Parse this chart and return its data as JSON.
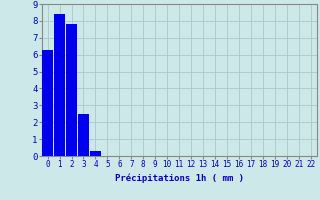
{
  "categories": [
    0,
    1,
    2,
    3,
    4,
    5,
    6,
    7,
    8,
    9,
    10,
    11,
    12,
    13,
    14,
    15,
    16,
    17,
    18,
    19,
    20,
    21,
    22
  ],
  "values": [
    6.3,
    8.4,
    7.8,
    2.5,
    0.3,
    0,
    0,
    0,
    0,
    0,
    0,
    0,
    0,
    0,
    0,
    0,
    0,
    0,
    0,
    0,
    0,
    0,
    0
  ],
  "bar_color": "#0000ee",
  "background_color": "#cce8e8",
  "grid_color": "#aac8c8",
  "xlabel": "Précipitations 1h ( mm )",
  "ylim": [
    0,
    9
  ],
  "xlim": [
    -0.5,
    22.5
  ],
  "yticks": [
    0,
    1,
    2,
    3,
    4,
    5,
    6,
    7,
    8,
    9
  ],
  "xticks": [
    0,
    1,
    2,
    3,
    4,
    5,
    6,
    7,
    8,
    9,
    10,
    11,
    12,
    13,
    14,
    15,
    16,
    17,
    18,
    19,
    20,
    21,
    22
  ],
  "tick_color": "#0000cc",
  "label_color": "#0000cc",
  "spine_color": "#888888",
  "xlabel_fontsize": 6.5,
  "ytick_fontsize": 6.5,
  "xtick_fontsize": 5.5
}
